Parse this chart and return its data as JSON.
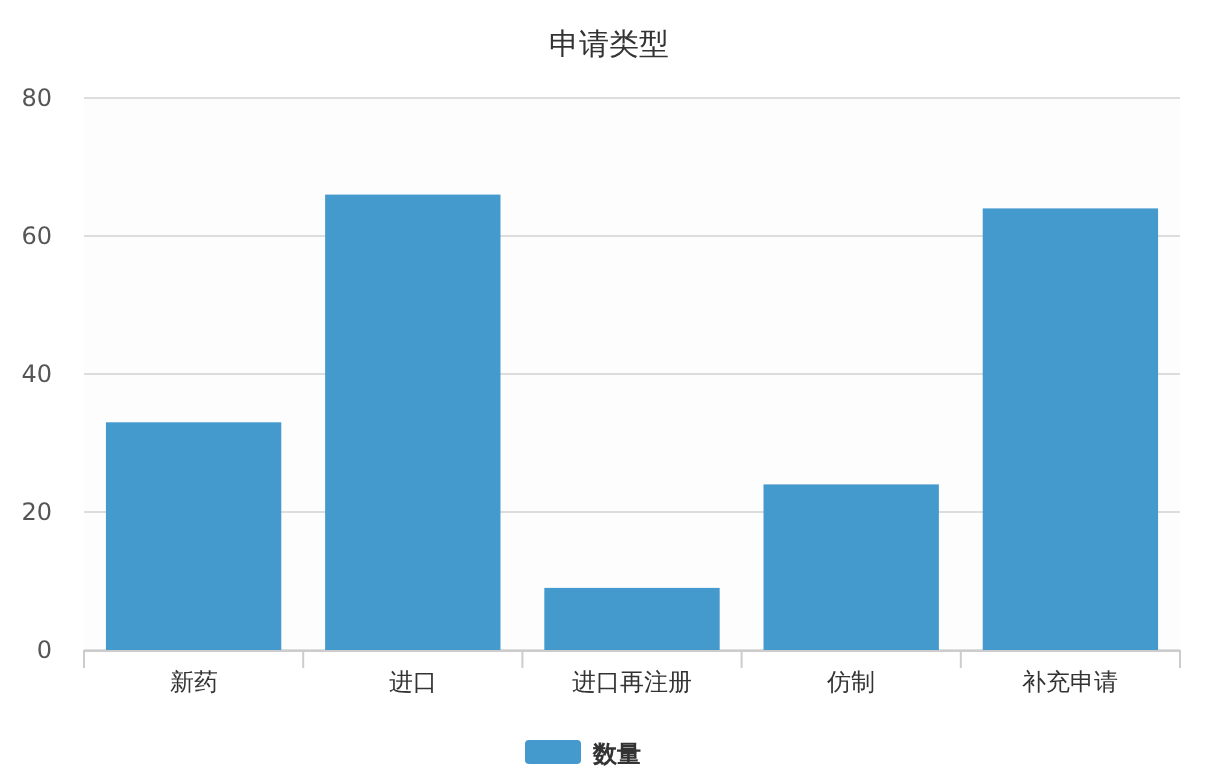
{
  "chart_data": {
    "type": "bar",
    "title": "申请类型",
    "categories": [
      "新药",
      "进口",
      "进口再注册",
      "仿制",
      "补充申请"
    ],
    "series": [
      {
        "name": "数量",
        "color": "#4499cd",
        "values": [
          33,
          66,
          9,
          24,
          64
        ]
      }
    ],
    "ylim": [
      0,
      80
    ],
    "yticks": [
      0,
      20,
      40,
      60,
      80
    ],
    "grid": "y",
    "legend": "bottom"
  }
}
